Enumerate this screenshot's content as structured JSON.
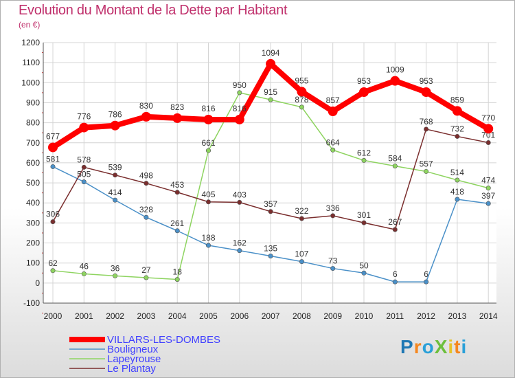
{
  "title": "Evolution du Montant de la Dette par Habitant",
  "subtitle": "(en €)",
  "logo": {
    "text": "ProXiti",
    "letter_colors": [
      "#1f78b4",
      "#f5871f",
      "#2aa0d8",
      "#6cbf3c",
      "#e6c229",
      "#f5871f",
      "#2aa0d8"
    ]
  },
  "chart_data": {
    "type": "line",
    "x": [
      2000,
      2001,
      2002,
      2003,
      2004,
      2005,
      2006,
      2007,
      2008,
      2009,
      2010,
      2011,
      2012,
      2013,
      2014
    ],
    "ylim": [
      -100,
      1200
    ],
    "yticks": [
      -100,
      0,
      100,
      200,
      300,
      400,
      500,
      600,
      700,
      800,
      900,
      1000,
      1100,
      1200
    ],
    "grid": true,
    "legend_placement": "bottom-left",
    "series": [
      {
        "name": "VILLARS-LES-DOMBES",
        "color": "#ff0000",
        "highlight": true,
        "values": [
          677,
          776,
          786,
          830,
          823,
          816,
          816,
          1094,
          955,
          857,
          953,
          1009,
          953,
          859,
          770
        ],
        "labels": [
          "677",
          "776",
          "786",
          "830",
          "823",
          "816",
          "816",
          "1094",
          "955",
          "857",
          "953",
          "1009",
          "953",
          "859",
          "770"
        ]
      },
      {
        "name": "Bouligneux",
        "color": "#4a90c8",
        "values": [
          581,
          505,
          414,
          328,
          261,
          188,
          162,
          135,
          107,
          73,
          50,
          6,
          6,
          418,
          397
        ],
        "labels": [
          "581",
          "505",
          "414",
          "328",
          "261",
          "188",
          "162",
          "135",
          "107",
          "73",
          "50",
          "6",
          "6",
          "418",
          "397"
        ]
      },
      {
        "name": "Lapeyrouse",
        "color": "#8ed460",
        "values": [
          62,
          46,
          36,
          27,
          18,
          661,
          950,
          915,
          878,
          664,
          612,
          584,
          557,
          514,
          474
        ],
        "labels": [
          "62",
          "46",
          "36",
          "27",
          "18",
          "661",
          "950",
          "915",
          "878",
          "664",
          "612",
          "584",
          "557",
          "514",
          "474"
        ]
      },
      {
        "name": "Le Plantay",
        "color": "#7a2e2e",
        "values": [
          306,
          578,
          539,
          498,
          453,
          405,
          403,
          357,
          322,
          336,
          301,
          267,
          768,
          732,
          701
        ],
        "labels": [
          "306",
          "578",
          "539",
          "498",
          "453",
          "405",
          "403",
          "357",
          "322",
          "336",
          "301",
          "267",
          "768",
          "732",
          "701"
        ]
      }
    ]
  }
}
